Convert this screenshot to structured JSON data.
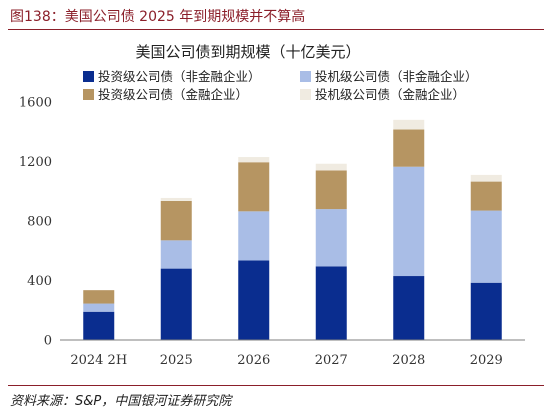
{
  "figure": {
    "label": "图138：美国公司债 2025 年到期规模并不算高",
    "source": "资料来源：S&P，中国银河证券研究院"
  },
  "colors": {
    "title_red": "#8b1f2a",
    "ig_nonfin": "#0a2d8f",
    "hy_nonfin": "#a9bde6",
    "ig_fin": "#b69562",
    "hy_fin": "#f0ebe1"
  },
  "chart_data": {
    "type": "bar",
    "stacked": true,
    "title": "美国公司债到期规模（十亿美元）",
    "categories": [
      "2024 2H",
      "2025",
      "2026",
      "2027",
      "2028",
      "2029"
    ],
    "ylim": [
      0,
      1600
    ],
    "yticks": [
      0,
      400,
      800,
      1200,
      1600
    ],
    "grid": false,
    "legend_position": "top",
    "series": [
      {
        "name": "投资级公司债（非金融企业）",
        "color": "#0a2d8f",
        "values": [
          190,
          480,
          535,
          495,
          430,
          385
        ]
      },
      {
        "name": "投机级公司债（非金融企业）",
        "color": "#a9bde6",
        "values": [
          55,
          190,
          330,
          385,
          735,
          485
        ]
      },
      {
        "name": "投资级公司债（金融企业）",
        "color": "#b69562",
        "values": [
          90,
          265,
          330,
          260,
          250,
          195
        ]
      },
      {
        "name": "投机级公司债（金融企业）",
        "color": "#f0ebe1",
        "values": [
          0,
          20,
          35,
          45,
          65,
          45
        ]
      }
    ]
  }
}
